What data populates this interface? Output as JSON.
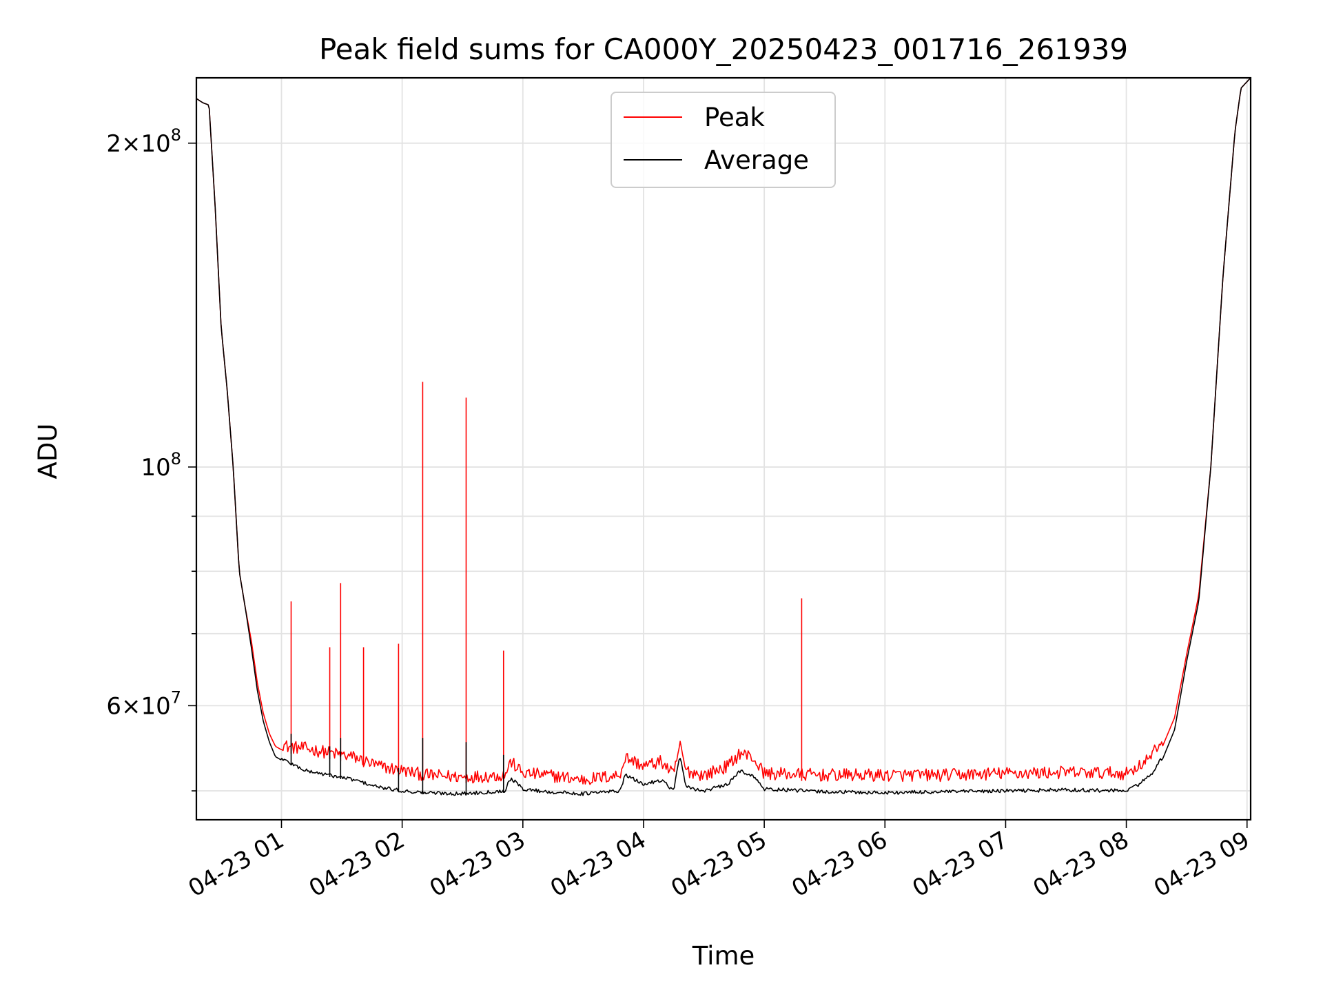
{
  "chart_data": {
    "type": "line",
    "title": "Peak field sums for CA000Y_20250423_001716_261939",
    "xlabel": "Time",
    "ylabel": "ADU",
    "yscale": "log",
    "xlim_hours": [
      0.295,
      9.03
    ],
    "ylim": [
      47000000,
      230000000
    ],
    "grid": true,
    "legend_position": "upper center",
    "x_ticks": [
      {
        "label": "04-23 01",
        "hour": 1
      },
      {
        "label": "04-23 02",
        "hour": 2
      },
      {
        "label": "04-23 03",
        "hour": 3
      },
      {
        "label": "04-23 04",
        "hour": 4
      },
      {
        "label": "04-23 05",
        "hour": 5
      },
      {
        "label": "04-23 06",
        "hour": 6
      },
      {
        "label": "04-23 07",
        "hour": 7
      },
      {
        "label": "04-23 08",
        "hour": 8
      },
      {
        "label": "04-23 09",
        "hour": 9
      }
    ],
    "y_major_ticks": [
      {
        "base": "2",
        "exp": "8",
        "value": 200000000
      },
      {
        "base": "",
        "exp": "8",
        "value": 100000000
      },
      {
        "base": "6",
        "exp": "7",
        "value": 60000000
      }
    ],
    "y_minor_ticks": [
      50000000,
      70000000,
      80000000,
      90000000
    ],
    "series": [
      {
        "name": "Peak",
        "color": "#ff0000",
        "baseline_points": [
          [
            0.295,
            220000000.0
          ],
          [
            0.35,
            218000000.0
          ],
          [
            0.4,
            217000000.0
          ],
          [
            0.45,
            175000000.0
          ],
          [
            0.5,
            135000000.0
          ],
          [
            0.55,
            118000000.0
          ],
          [
            0.6,
            100000000.0
          ],
          [
            0.65,
            80000000.0
          ],
          [
            0.7,
            74000000.0
          ],
          [
            0.75,
            69000000.0
          ],
          [
            0.8,
            63000000.0
          ],
          [
            0.85,
            59000000.0
          ],
          [
            0.9,
            56500000.0
          ],
          [
            0.95,
            55000000.0
          ],
          [
            1.05,
            54200000.0
          ],
          [
            1.2,
            54000000.0
          ],
          [
            1.4,
            53500000.0
          ],
          [
            1.6,
            53000000.0
          ],
          [
            1.8,
            52000000.0
          ],
          [
            2.0,
            51500000.0
          ],
          [
            2.2,
            51000000.0
          ],
          [
            2.5,
            50800000.0
          ],
          [
            2.85,
            51000000.0
          ],
          [
            2.9,
            52500000.0
          ],
          [
            3.0,
            51200000.0
          ],
          [
            3.2,
            51000000.0
          ],
          [
            3.5,
            50500000.0
          ],
          [
            3.8,
            51000000.0
          ],
          [
            3.85,
            53000000.0
          ],
          [
            4.0,
            52000000.0
          ],
          [
            4.15,
            52500000.0
          ],
          [
            4.25,
            51000000.0
          ],
          [
            4.3,
            54500000.0
          ],
          [
            4.35,
            51500000.0
          ],
          [
            4.5,
            51000000.0
          ],
          [
            4.7,
            52000000.0
          ],
          [
            4.8,
            53500000.0
          ],
          [
            4.9,
            53000000.0
          ],
          [
            5.0,
            51200000.0
          ],
          [
            5.5,
            51000000.0
          ],
          [
            6.0,
            51000000.0
          ],
          [
            6.5,
            51000000.0
          ],
          [
            7.0,
            51200000.0
          ],
          [
            7.5,
            51300000.0
          ],
          [
            8.0,
            51200000.0
          ],
          [
            8.1,
            52000000.0
          ],
          [
            8.2,
            53000000.0
          ],
          [
            8.3,
            55000000.0
          ],
          [
            8.4,
            58500000.0
          ],
          [
            8.5,
            67000000.0
          ],
          [
            8.6,
            76000000.0
          ],
          [
            8.7,
            100000000.0
          ],
          [
            8.8,
            150000000.0
          ],
          [
            8.9,
            205000000.0
          ],
          [
            8.95,
            225000000.0
          ],
          [
            9.03,
            230000000.0
          ]
        ],
        "spikes": [
          {
            "hour": 1.08,
            "value": 75000000.0
          },
          {
            "hour": 1.4,
            "value": 68000000.0
          },
          {
            "hour": 1.49,
            "value": 78000000.0
          },
          {
            "hour": 1.68,
            "value": 68000000.0
          },
          {
            "hour": 1.97,
            "value": 68500000.0
          },
          {
            "hour": 2.17,
            "value": 120000000.0
          },
          {
            "hour": 2.53,
            "value": 116000000.0
          },
          {
            "hour": 2.84,
            "value": 67500000.0
          },
          {
            "hour": 5.31,
            "value": 75500000.0
          }
        ]
      },
      {
        "name": "Average",
        "color": "#000000",
        "baseline_points": [
          [
            0.295,
            220000000.0
          ],
          [
            0.35,
            218000000.0
          ],
          [
            0.4,
            217000000.0
          ],
          [
            0.45,
            175000000.0
          ],
          [
            0.5,
            135000000.0
          ],
          [
            0.55,
            118000000.0
          ],
          [
            0.6,
            100000000.0
          ],
          [
            0.65,
            80000000.0
          ],
          [
            0.7,
            74000000.0
          ],
          [
            0.75,
            68000000.0
          ],
          [
            0.8,
            62000000.0
          ],
          [
            0.85,
            58000000.0
          ],
          [
            0.9,
            55500000.0
          ],
          [
            0.95,
            53800000.0
          ],
          [
            1.05,
            53000000.0
          ],
          [
            1.2,
            52000000.0
          ],
          [
            1.4,
            51500000.0
          ],
          [
            1.6,
            51000000.0
          ],
          [
            1.8,
            50200000.0
          ],
          [
            2.0,
            49800000.0
          ],
          [
            2.2,
            49600000.0
          ],
          [
            2.5,
            49500000.0
          ],
          [
            2.85,
            49800000.0
          ],
          [
            2.9,
            51200000.0
          ],
          [
            3.0,
            50000000.0
          ],
          [
            3.2,
            49700000.0
          ],
          [
            3.5,
            49500000.0
          ],
          [
            3.8,
            49800000.0
          ],
          [
            3.85,
            51500000.0
          ],
          [
            4.0,
            50500000.0
          ],
          [
            4.15,
            51000000.0
          ],
          [
            4.25,
            49800000.0
          ],
          [
            4.3,
            53800000.0
          ],
          [
            4.35,
            50200000.0
          ],
          [
            4.5,
            49800000.0
          ],
          [
            4.7,
            50500000.0
          ],
          [
            4.8,
            52000000.0
          ],
          [
            4.9,
            51500000.0
          ],
          [
            5.0,
            50000000.0
          ],
          [
            5.5,
            49700000.0
          ],
          [
            6.0,
            49600000.0
          ],
          [
            6.5,
            49700000.0
          ],
          [
            7.0,
            49800000.0
          ],
          [
            7.5,
            49900000.0
          ],
          [
            8.0,
            49800000.0
          ],
          [
            8.1,
            50500000.0
          ],
          [
            8.2,
            51500000.0
          ],
          [
            8.3,
            53500000.0
          ],
          [
            8.4,
            57000000.0
          ],
          [
            8.5,
            66000000.0
          ],
          [
            8.6,
            75000000.0
          ],
          [
            8.7,
            100000000.0
          ],
          [
            8.8,
            150000000.0
          ],
          [
            8.9,
            205000000.0
          ],
          [
            8.95,
            225000000.0
          ],
          [
            9.03,
            230000000.0
          ]
        ],
        "spikes": [
          {
            "hour": 1.08,
            "value": 56500000.0
          },
          {
            "hour": 1.4,
            "value": 55000000.0
          },
          {
            "hour": 1.49,
            "value": 56000000.0
          },
          {
            "hour": 1.97,
            "value": 52500000.0
          },
          {
            "hour": 2.17,
            "value": 56000000.0
          },
          {
            "hour": 2.53,
            "value": 55500000.0
          },
          {
            "hour": 2.84,
            "value": 54000000.0
          }
        ]
      }
    ]
  }
}
